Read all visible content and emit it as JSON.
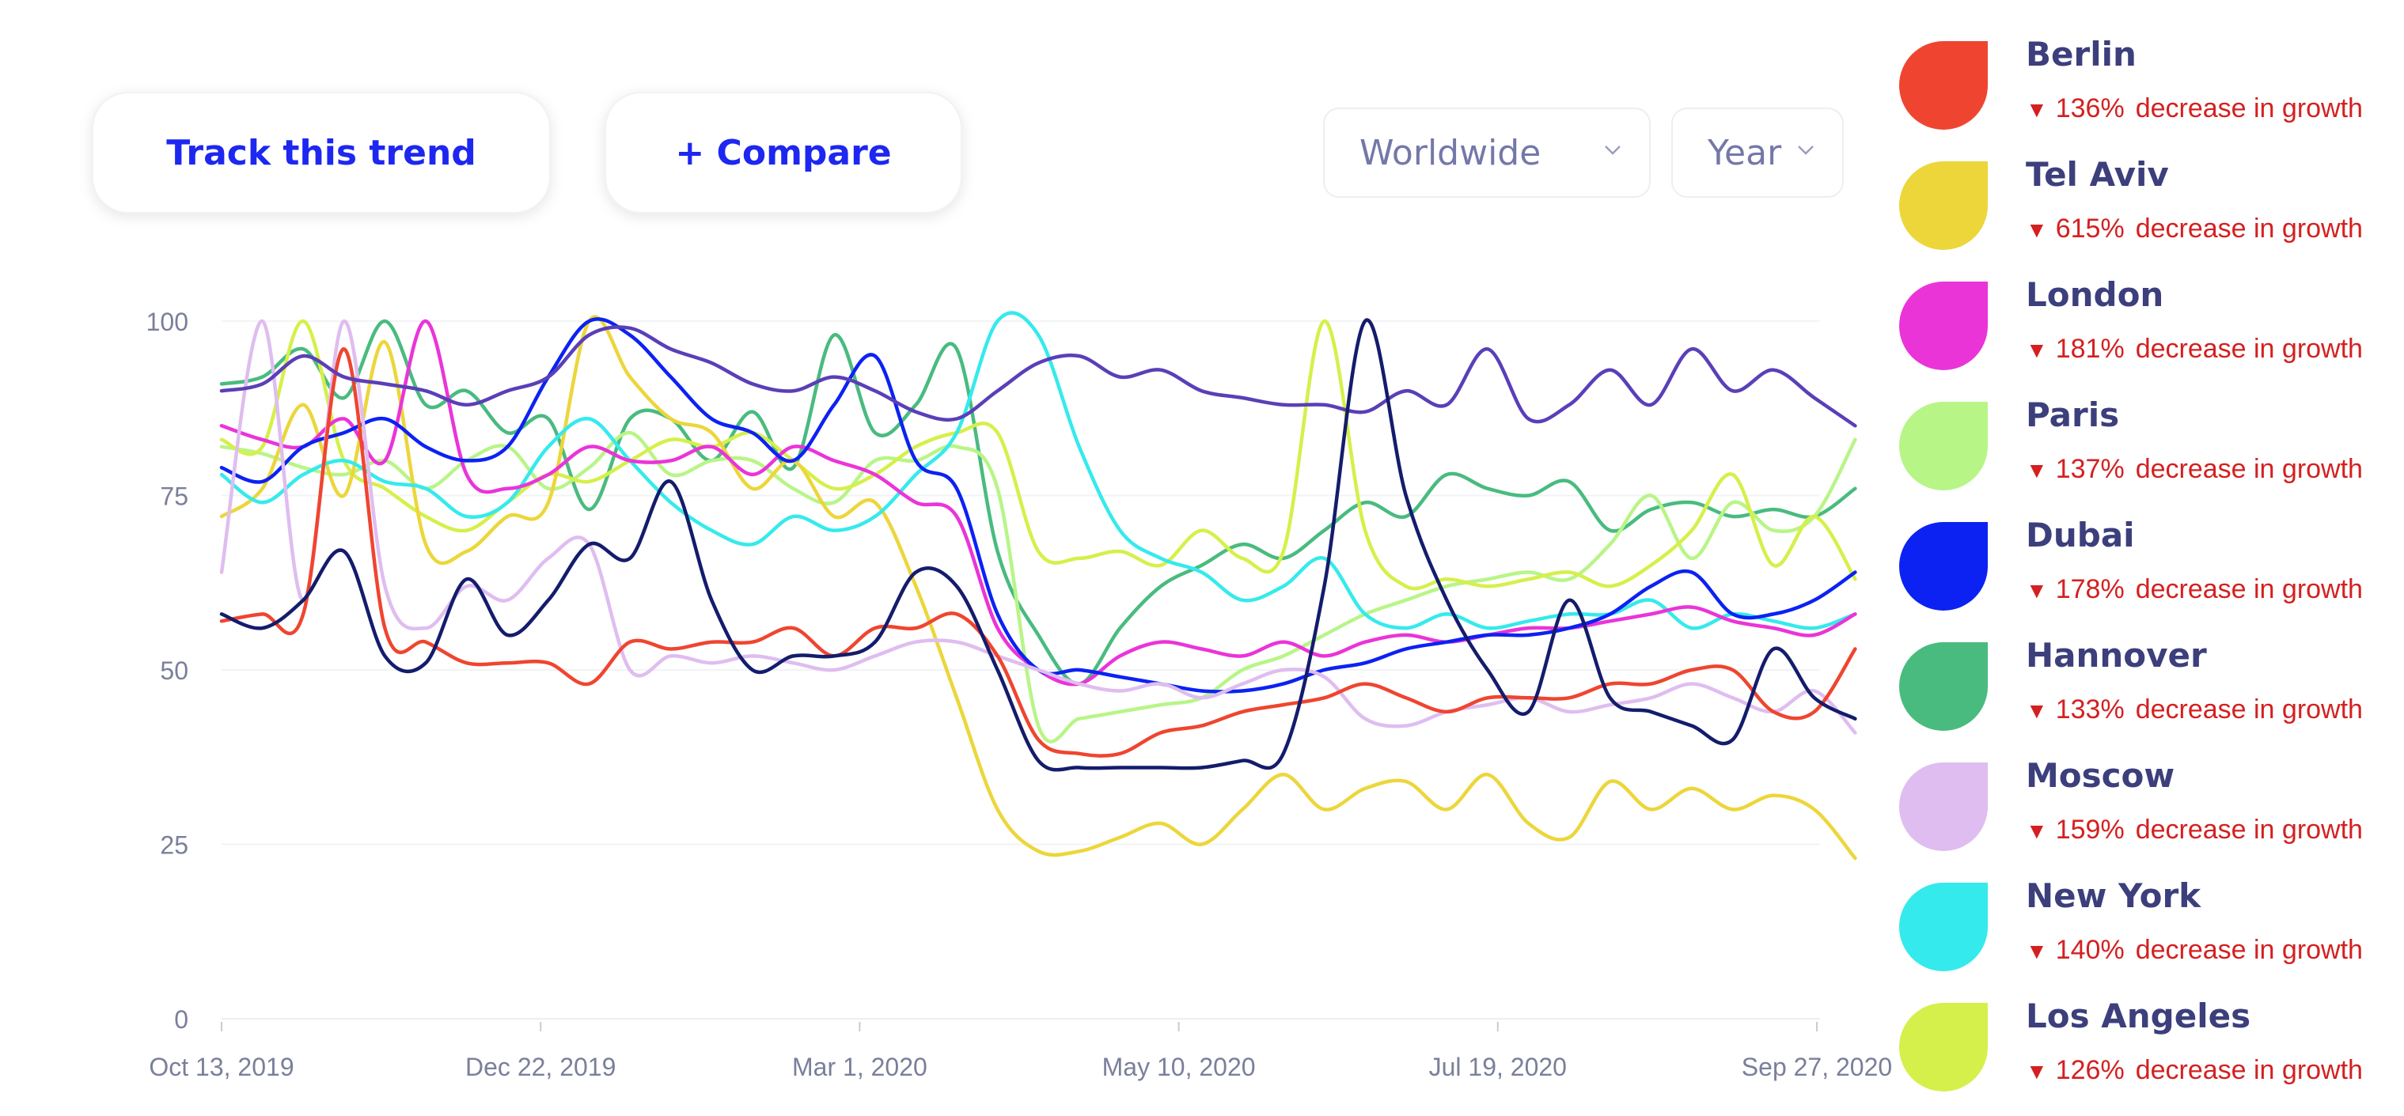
{
  "toolbar": {
    "track_label": "Track this trend",
    "compare_label": "+ Compare",
    "region": "Worldwide",
    "period": "Year"
  },
  "legend": [
    {
      "name": "Berlin",
      "pct": "136%",
      "text": "decrease in growth",
      "color": "#ef4530"
    },
    {
      "name": "Tel Aviv",
      "pct": "615%",
      "text": "decrease in growth",
      "color": "#ecd63a"
    },
    {
      "name": "London",
      "pct": "181%",
      "text": "decrease in growth",
      "color": "#ea34d8"
    },
    {
      "name": "Paris",
      "pct": "137%",
      "text": "decrease in growth",
      "color": "#b8f587"
    },
    {
      "name": "Dubai",
      "pct": "178%",
      "text": "decrease in growth",
      "color": "#0c22f2"
    },
    {
      "name": "Hannover",
      "pct": "133%",
      "text": "decrease in growth",
      "color": "#49bb7f"
    },
    {
      "name": "Moscow",
      "pct": "159%",
      "text": "decrease in growth",
      "color": "#dfbdf0"
    },
    {
      "name": "New York",
      "pct": "140%",
      "text": "decrease in growth",
      "color": "#35eaec"
    },
    {
      "name": "Los Angeles",
      "pct": "126%",
      "text": "decrease in growth",
      "color": "#d5f04a"
    }
  ],
  "chart_data": {
    "type": "line",
    "title": "",
    "xlabel": "",
    "ylabel": "",
    "ylim": [
      0,
      100
    ],
    "yticks": [
      0,
      25,
      50,
      75,
      100
    ],
    "grid": true,
    "legend_placement": "right",
    "xticks": [
      {
        "label": "Oct 13, 2019",
        "week": 0
      },
      {
        "label": "Dec 22, 2019",
        "week": 10
      },
      {
        "label": "Mar 1, 2020",
        "week": 20
      },
      {
        "label": "May 10, 2020",
        "week": 30
      },
      {
        "label": "Jul 19, 2020",
        "week": 40
      },
      {
        "label": "Sep 27, 2020",
        "week": 50
      }
    ],
    "series": [
      {
        "name": "Hannover",
        "color": "#49bb7f",
        "values": [
          91,
          92,
          96,
          89,
          100,
          88,
          90,
          84,
          86,
          73,
          86,
          86,
          80,
          87,
          79,
          98,
          84,
          88,
          96,
          67,
          55,
          48,
          56,
          62,
          65,
          68,
          66,
          70,
          74,
          72,
          78,
          76,
          75,
          77,
          70,
          73,
          74,
          72,
          73,
          72,
          76
        ]
      },
      {
        "name": "Paris",
        "color": "#b8f587",
        "values": [
          82,
          81,
          79,
          78,
          80,
          76,
          80,
          82,
          76,
          79,
          84,
          78,
          80,
          80,
          76,
          74,
          80,
          80,
          82,
          76,
          42,
          43,
          44,
          45,
          46,
          50,
          52,
          55,
          58,
          60,
          62,
          63,
          64,
          63,
          68,
          75,
          66,
          74,
          70,
          72,
          83
        ]
      },
      {
        "name": "Los Angeles",
        "color": "#d5f04a",
        "values": [
          83,
          82,
          100,
          80,
          76,
          72,
          70,
          74,
          78,
          77,
          80,
          83,
          82,
          84,
          80,
          76,
          78,
          82,
          84,
          84,
          67,
          66,
          67,
          65,
          70,
          66,
          67,
          100,
          70,
          62,
          63,
          62,
          63,
          64,
          62,
          65,
          70,
          78,
          65,
          72,
          63
        ]
      },
      {
        "name": "Tel Aviv",
        "color": "#ecd63a",
        "values": [
          72,
          76,
          88,
          75,
          97,
          68,
          67,
          72,
          74,
          100,
          92,
          86,
          84,
          76,
          80,
          72,
          74,
          62,
          46,
          30,
          24,
          24,
          26,
          28,
          25,
          30,
          35,
          30,
          33,
          34,
          30,
          35,
          28,
          26,
          34,
          30,
          33,
          30,
          32,
          30,
          23
        ]
      },
      {
        "name": "New York",
        "color": "#35eaec",
        "values": [
          78,
          74,
          78,
          80,
          77,
          76,
          72,
          74,
          82,
          86,
          80,
          74,
          70,
          68,
          72,
          70,
          72,
          78,
          84,
          100,
          98,
          82,
          70,
          66,
          64,
          60,
          62,
          66,
          58,
          56,
          58,
          56,
          57,
          58,
          58,
          60,
          56,
          58,
          57,
          56,
          58
        ]
      },
      {
        "name": "London",
        "color": "#ea34d8",
        "values": [
          85,
          83,
          82,
          86,
          80,
          100,
          78,
          76,
          78,
          82,
          80,
          80,
          82,
          78,
          82,
          80,
          78,
          74,
          72,
          56,
          50,
          48,
          52,
          54,
          53,
          52,
          54,
          52,
          54,
          55,
          54,
          55,
          56,
          56,
          57,
          58,
          59,
          57,
          56,
          55,
          58
        ]
      },
      {
        "name": "Dubai",
        "color": "#0c22f2",
        "values": [
          79,
          77,
          82,
          84,
          86,
          82,
          80,
          82,
          92,
          100,
          98,
          92,
          86,
          84,
          80,
          88,
          95,
          80,
          76,
          58,
          50,
          50,
          49,
          48,
          47,
          47,
          48,
          50,
          51,
          53,
          54,
          55,
          55,
          56,
          58,
          62,
          64,
          58,
          58,
          60,
          64
        ]
      },
      {
        "name": "Moscow",
        "color": "#dfbdf0",
        "values": [
          64,
          100,
          60,
          100,
          62,
          56,
          62,
          60,
          66,
          68,
          50,
          52,
          51,
          52,
          51,
          50,
          52,
          54,
          54,
          52,
          50,
          48,
          47,
          48,
          46,
          48,
          50,
          49,
          43,
          42,
          44,
          45,
          46,
          44,
          45,
          46,
          48,
          46,
          44,
          47,
          41
        ]
      },
      {
        "name": "Berlin",
        "color": "#ef4530",
        "values": [
          57,
          58,
          58,
          96,
          56,
          54,
          51,
          51,
          51,
          48,
          54,
          53,
          54,
          54,
          56,
          52,
          56,
          56,
          58,
          52,
          40,
          38,
          38,
          41,
          42,
          44,
          45,
          46,
          48,
          46,
          44,
          46,
          46,
          46,
          48,
          48,
          50,
          50,
          44,
          44,
          53
        ]
      },
      {
        "name": "Purple",
        "color": "#5a3fb8",
        "values": [
          90,
          91,
          95,
          92,
          91,
          90,
          88,
          90,
          92,
          98,
          99,
          96,
          94,
          91,
          90,
          92,
          90,
          87,
          86,
          90,
          94,
          95,
          92,
          93,
          90,
          89,
          88,
          88,
          87,
          90,
          88,
          96,
          86,
          88,
          93,
          88,
          96,
          90,
          93,
          89,
          85
        ]
      },
      {
        "name": "Navy",
        "color": "#141c6c",
        "values": [
          58,
          56,
          60,
          67,
          52,
          51,
          63,
          55,
          60,
          68,
          66,
          77,
          60,
          50,
          52,
          52,
          54,
          64,
          62,
          50,
          37,
          36,
          36,
          36,
          36,
          37,
          38,
          62,
          100,
          75,
          60,
          50,
          44,
          60,
          46,
          44,
          42,
          40,
          53,
          46,
          43
        ]
      }
    ]
  }
}
